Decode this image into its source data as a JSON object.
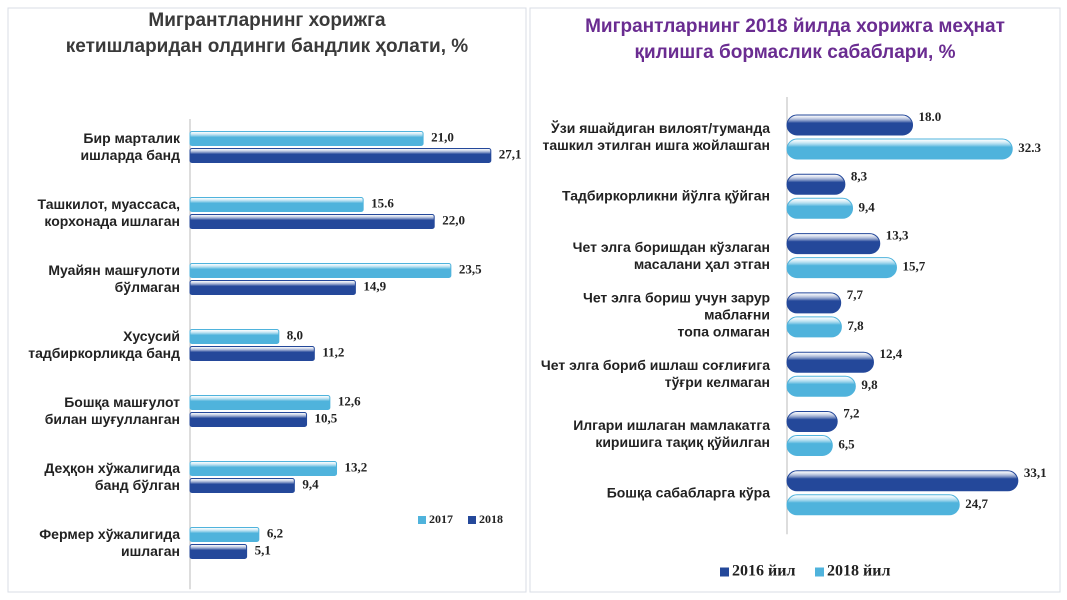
{
  "chart_data": [
    {
      "type": "bar",
      "orientation": "horizontal",
      "title": "Мигрантларнинг хорижга\nкетишларидан олдинги бандлик ҳолати, %",
      "categories": [
        "Бир марталик\nишларда банд",
        "Ташкилот, муассаса,\nкорхонада ишлаган",
        "Муайян машғулоти\nбўлмаган",
        "Хусусий\nтадбиркорликда банд",
        "Бошқа машғулот\nбилан шуғулланган",
        "Деҳқон хўжалигида\nбанд бўлган",
        "Фермер хўжалигида\nишлаган"
      ],
      "series": [
        {
          "name": "2017",
          "color": "#4fb3dc",
          "values": [
            21.0,
            15.6,
            23.5,
            8.0,
            12.6,
            13.2,
            6.2
          ],
          "value_labels": [
            "21,0",
            "15.6",
            "23,5",
            "8,0",
            "12,6",
            "13,2",
            "6,2"
          ]
        },
        {
          "name": "2018",
          "color": "#24489a",
          "values": [
            27.1,
            22.0,
            14.9,
            11.2,
            10.5,
            9.4,
            5.1
          ],
          "value_labels": [
            "27,1",
            "22,0",
            "14,9",
            "11,2",
            "10,5",
            "9,4",
            "5,1"
          ]
        }
      ],
      "xlim": [
        0,
        30
      ],
      "legend": "lower right"
    },
    {
      "type": "bar",
      "orientation": "horizontal",
      "title": "Мигрантларнинг 2018 йилда хорижга меҳнат\nқилишга бормаслик сабаблари, %",
      "categories": [
        "Ўзи яшайдиган вилоят/туманда\nташкил этилган ишга жойлашган",
        "Тадбиркорликни йўлга қўйган",
        "Чет элга боришдан кўзлаган\nмасалани ҳал этган",
        "Чет элга бориш учун зарур маблағни\nтопа олмаган",
        "Чет элга бориб ишлаш соғлиғига\nтўғри келмаган",
        "Илгари ишлаган мамлакатга\nкиришига тақиқ қўйилган",
        "Бошқа сабабларга кўра"
      ],
      "series": [
        {
          "name": "2016 йил",
          "color": "#24489a",
          "values": [
            18.0,
            8.3,
            13.3,
            7.7,
            12.4,
            7.2,
            33.1
          ],
          "value_labels": [
            "18.0",
            "8,3",
            "13,3",
            "7,7",
            "12,4",
            "7,2",
            "33,1"
          ]
        },
        {
          "name": "2018 йил",
          "color": "#4fb3dc",
          "values": [
            32.3,
            9.4,
            15.7,
            7.8,
            9.8,
            6.5,
            24.7
          ],
          "value_labels": [
            "32.3",
            "9,4",
            "15,7",
            "7,8",
            "9,8",
            "6,5",
            "24,7"
          ]
        }
      ],
      "xlim": [
        0,
        38
      ],
      "legend": "lower center"
    }
  ]
}
